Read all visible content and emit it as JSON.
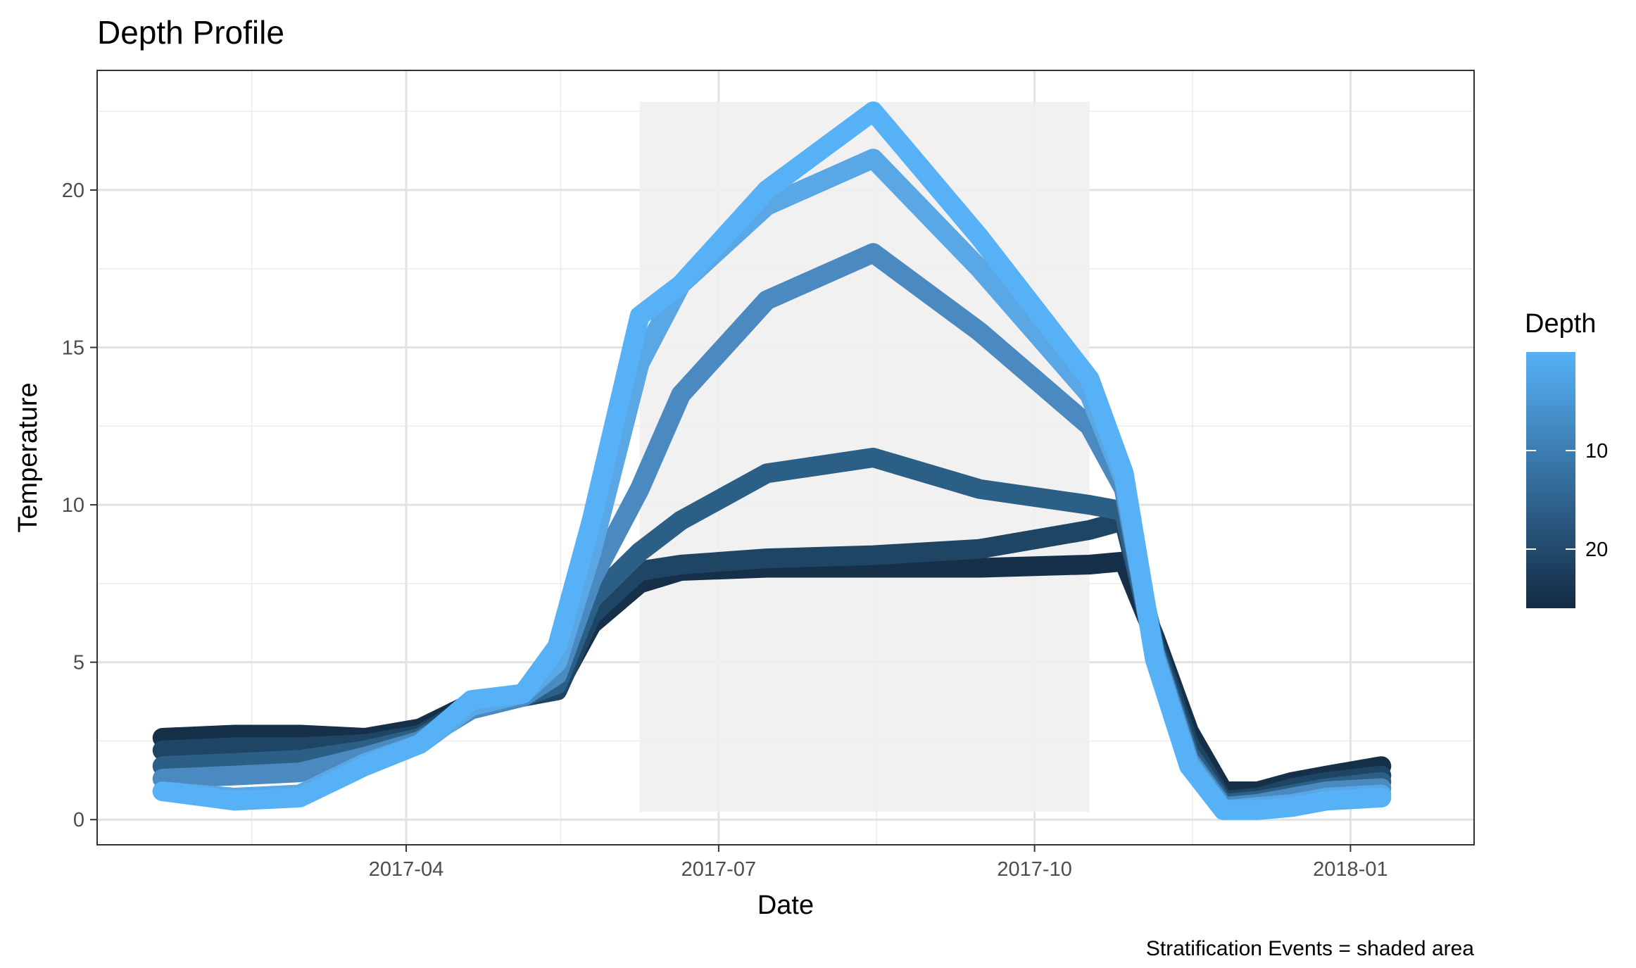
{
  "chart_data": {
    "type": "scatter",
    "title": "Depth Profile",
    "xlabel": "Date",
    "ylabel": "Temperature",
    "caption": "Stratification Events = shaded area",
    "x_axis": {
      "type": "date",
      "range": [
        "2017-01-01",
        "2018-02-06"
      ],
      "ticks": [
        "2017-04-01",
        "2017-07-01",
        "2017-10-01",
        "2018-01-01"
      ],
      "tick_labels": [
        "2017-04",
        "2017-07",
        "2017-10",
        "2018-01"
      ]
    },
    "y_axis": {
      "range": [
        -0.8,
        23.8
      ],
      "ticks": [
        0,
        5,
        10,
        15,
        20
      ],
      "tick_labels": [
        "0",
        "5",
        "10",
        "15",
        "20"
      ]
    },
    "grid": true,
    "shaded_area": {
      "x": [
        "2017-06-08",
        "2017-10-17"
      ],
      "y": [
        0.25,
        22.8
      ],
      "color": "#efefef"
    },
    "legend": {
      "title": "Depth",
      "placement": "right",
      "type": "colorbar",
      "range": [
        0,
        26
      ],
      "ticks": [
        10,
        20
      ],
      "tick_labels": [
        "10",
        "20"
      ],
      "color_low": "#56b1f7",
      "color_high": "#132b43"
    },
    "series": [
      {
        "depth": 26,
        "color": "#16304a",
        "x": [
          "2017-01-20",
          "2017-02-10",
          "2017-03-01",
          "2017-03-20",
          "2017-04-05",
          "2017-04-20",
          "2017-05-05",
          "2017-05-15",
          "2017-05-25",
          "2017-06-08",
          "2017-06-20",
          "2017-07-15",
          "2017-08-15",
          "2017-09-15",
          "2017-10-17",
          "2017-10-27",
          "2017-11-05",
          "2017-11-15",
          "2017-11-25",
          "2017-12-05",
          "2017-12-15",
          "2017-12-25",
          "2018-01-10"
        ],
        "y": [
          2.6,
          2.7,
          2.7,
          2.6,
          2.9,
          3.7,
          4.0,
          4.2,
          6.2,
          7.5,
          7.9,
          8.0,
          8.0,
          8.0,
          8.1,
          8.2,
          5.8,
          2.8,
          0.9,
          0.9,
          1.2,
          1.4,
          1.7
        ]
      },
      {
        "depth": 22,
        "color": "#1f4564",
        "x": [
          "2017-01-20",
          "2017-02-10",
          "2017-03-01",
          "2017-03-20",
          "2017-04-05",
          "2017-04-20",
          "2017-05-05",
          "2017-05-15",
          "2017-05-25",
          "2017-06-08",
          "2017-06-20",
          "2017-07-15",
          "2017-08-15",
          "2017-09-15",
          "2017-10-17",
          "2017-10-27",
          "2017-11-05",
          "2017-11-15",
          "2017-11-25",
          "2017-12-05",
          "2017-12-15",
          "2017-12-25",
          "2018-01-10"
        ],
        "y": [
          2.2,
          2.3,
          2.3,
          2.4,
          2.7,
          3.6,
          3.9,
          4.1,
          6.5,
          7.9,
          8.1,
          8.3,
          8.4,
          8.6,
          9.2,
          9.5,
          5.6,
          2.4,
          0.6,
          0.7,
          1.0,
          1.2,
          1.4
        ]
      },
      {
        "depth": 16,
        "color": "#2c5f86",
        "x": [
          "2017-01-20",
          "2017-02-10",
          "2017-03-01",
          "2017-03-20",
          "2017-04-05",
          "2017-04-20",
          "2017-05-05",
          "2017-05-15",
          "2017-05-25",
          "2017-06-08",
          "2017-06-20",
          "2017-07-15",
          "2017-08-15",
          "2017-09-15",
          "2017-10-17",
          "2017-10-27",
          "2017-11-05",
          "2017-11-15",
          "2017-11-25",
          "2017-12-05",
          "2017-12-15",
          "2017-12-25",
          "2018-01-10"
        ],
        "y": [
          1.7,
          1.8,
          1.9,
          2.2,
          2.6,
          3.5,
          3.9,
          4.3,
          7.0,
          8.5,
          9.5,
          11.0,
          11.5,
          10.5,
          10.0,
          9.8,
          5.4,
          2.1,
          0.5,
          0.6,
          0.8,
          1.0,
          1.2
        ]
      },
      {
        "depth": 10,
        "color": "#4a8ac0",
        "x": [
          "2017-01-20",
          "2017-02-10",
          "2017-03-01",
          "2017-03-20",
          "2017-04-05",
          "2017-04-20",
          "2017-05-05",
          "2017-05-15",
          "2017-05-25",
          "2017-06-08",
          "2017-06-20",
          "2017-07-15",
          "2017-08-15",
          "2017-09-15",
          "2017-10-17",
          "2017-10-27",
          "2017-11-05",
          "2017-11-15",
          "2017-11-25",
          "2017-12-05",
          "2017-12-15",
          "2017-12-25",
          "2018-01-10"
        ],
        "y": [
          1.3,
          1.4,
          1.5,
          2.0,
          2.5,
          3.5,
          3.9,
          4.6,
          7.6,
          10.5,
          13.5,
          16.5,
          18.0,
          15.5,
          12.5,
          10.5,
          5.3,
          1.9,
          0.4,
          0.5,
          0.7,
          0.9,
          1.0
        ]
      },
      {
        "depth": 4,
        "color": "#5aa7e6",
        "x": [
          "2017-01-20",
          "2017-02-10",
          "2017-03-01",
          "2017-03-20",
          "2017-04-05",
          "2017-04-20",
          "2017-05-05",
          "2017-05-15",
          "2017-05-25",
          "2017-06-08",
          "2017-06-20",
          "2017-07-15",
          "2017-08-15",
          "2017-09-15",
          "2017-10-17",
          "2017-10-27",
          "2017-11-05",
          "2017-11-15",
          "2017-11-25",
          "2017-12-05",
          "2017-12-15",
          "2017-12-25",
          "2018-01-10"
        ],
        "y": [
          0.9,
          0.7,
          0.8,
          1.8,
          2.4,
          3.6,
          4.0,
          5.0,
          8.5,
          14.5,
          17.0,
          19.5,
          21.0,
          17.5,
          13.5,
          10.8,
          5.2,
          1.8,
          0.3,
          0.4,
          0.5,
          0.7,
          0.8
        ]
      },
      {
        "depth": 1,
        "color": "#56b1f7",
        "x": [
          "2017-01-20",
          "2017-02-10",
          "2017-03-01",
          "2017-03-20",
          "2017-04-05",
          "2017-04-20",
          "2017-05-05",
          "2017-05-15",
          "2017-05-25",
          "2017-06-08",
          "2017-06-20",
          "2017-07-15",
          "2017-08-15",
          "2017-09-15",
          "2017-10-17",
          "2017-10-27",
          "2017-11-05",
          "2017-11-15",
          "2017-11-25",
          "2017-12-05",
          "2017-12-15",
          "2017-12-25",
          "2018-01-10"
        ],
        "y": [
          0.9,
          0.6,
          0.7,
          1.7,
          2.4,
          3.8,
          4.0,
          5.5,
          9.5,
          16.0,
          17.0,
          20.0,
          22.5,
          18.5,
          14.0,
          11.0,
          5.1,
          1.7,
          0.3,
          0.3,
          0.4,
          0.6,
          0.7
        ]
      }
    ]
  }
}
